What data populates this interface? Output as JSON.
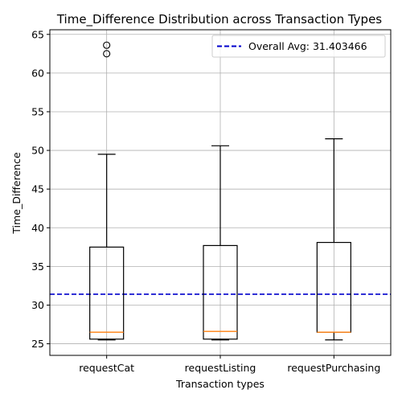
{
  "chart_data": {
    "type": "box",
    "title": "Time_Difference Distribution across Transaction Types",
    "xlabel": "Transaction types",
    "ylabel": "Time_Difference",
    "categories": [
      "requestCat",
      "requestListing",
      "requestPurchasing"
    ],
    "boxes": [
      {
        "name": "requestCat",
        "whisker_low": 25.5,
        "q1": 25.6,
        "median": 26.5,
        "q3": 37.5,
        "whisker_high": 49.5,
        "outliers": [
          62.5,
          63.6
        ]
      },
      {
        "name": "requestListing",
        "whisker_low": 25.5,
        "q1": 25.6,
        "median": 26.6,
        "q3": 37.7,
        "whisker_high": 50.6,
        "outliers": []
      },
      {
        "name": "requestPurchasing",
        "whisker_low": 25.5,
        "q1": 26.5,
        "median": 26.5,
        "q3": 38.1,
        "whisker_high": 51.5,
        "outliers": []
      }
    ],
    "reference_line": {
      "label": "Overall Avg: 31.403466",
      "value": 31.403466,
      "color": "#0000cc",
      "style": "dashed"
    },
    "yticks": [
      25,
      30,
      35,
      40,
      45,
      50,
      55,
      60,
      65
    ],
    "ylim": [
      23.5,
      65.6
    ],
    "grid": true,
    "legend": "top-right",
    "colors": {
      "box": "#000000",
      "median": "#ff7f0e",
      "grid": "#b0b0b0"
    }
  }
}
